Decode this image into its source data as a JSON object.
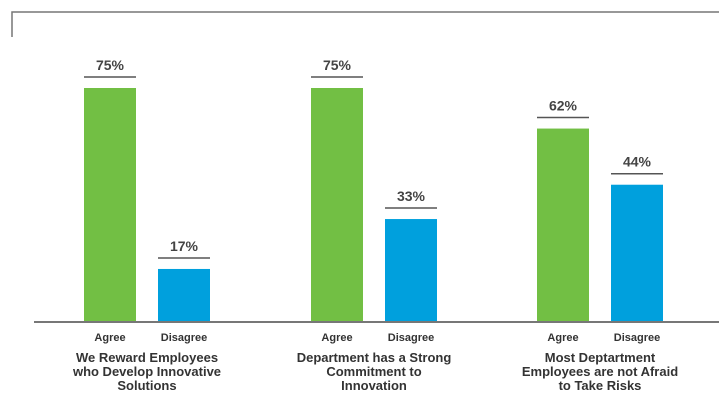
{
  "chart_data": {
    "type": "bar",
    "categories": [
      "We Reward Employees who Develop Innovative Solutions",
      "Department has a Strong Commitment to Innovation",
      "Most Deptartment Employees are not Afraid to Take Risks"
    ],
    "category_label_lines": [
      [
        "We Reward Employees",
        "who Develop Innovative",
        "Solutions"
      ],
      [
        "Department has a Strong",
        "Commitment to",
        "Innovation"
      ],
      [
        "Most Deptartment",
        "Employees are not Afraid",
        "to Take Risks"
      ]
    ],
    "series": [
      {
        "name": "Agree",
        "values": [
          75,
          75,
          62
        ],
        "labels": [
          "75%",
          "75%",
          "62%"
        ],
        "color": "#72bf44"
      },
      {
        "name": "Disagree",
        "values": [
          17,
          33,
          44
        ],
        "labels": [
          "17%",
          "33%",
          "44%"
        ],
        "color": "#00a0dd"
      }
    ],
    "ylim": [
      0,
      100
    ],
    "grid": false,
    "legend": "none",
    "title": "",
    "xlabel": "",
    "ylabel": ""
  },
  "colors": {
    "axis": "#777777",
    "label_rule": "#555555",
    "text": "#333333"
  }
}
